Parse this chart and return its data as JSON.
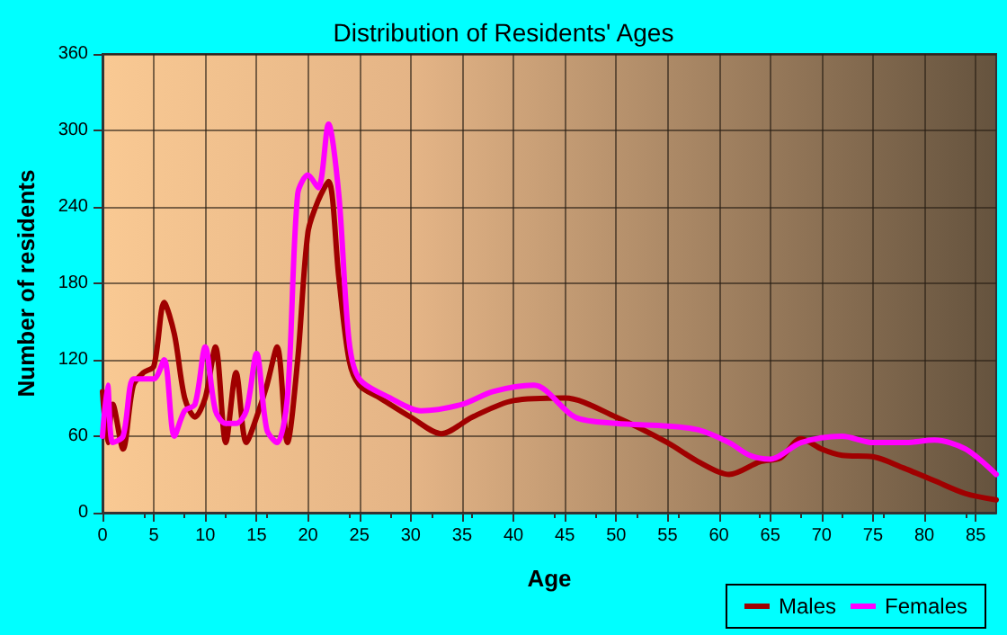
{
  "chart_data": {
    "type": "line",
    "title": "Distribution of Residents' Ages",
    "xlabel": "Age",
    "ylabel": "Number of residents",
    "xlim": [
      0,
      87
    ],
    "xticks": [
      0,
      5,
      10,
      15,
      20,
      25,
      30,
      35,
      40,
      45,
      50,
      55,
      60,
      65,
      70,
      75,
      80,
      85
    ],
    "ylim": [
      0,
      360
    ],
    "yticks": [
      0,
      60,
      120,
      180,
      240,
      300,
      360
    ],
    "grid": true,
    "legend": "bottom right",
    "marker": "none",
    "line_style": "solid",
    "series": [
      {
        "name": "Males",
        "color": "#a00000",
        "x": [
          0,
          0.5,
          1,
          2,
          3,
          4,
          5,
          6,
          7,
          8,
          9,
          10,
          11,
          12,
          13,
          14,
          15,
          16,
          17,
          18,
          19,
          20,
          21,
          22,
          23,
          24,
          25,
          27,
          30,
          33,
          36,
          40,
          45,
          50,
          55,
          58,
          61,
          64,
          66,
          68,
          70,
          72,
          75,
          78,
          81,
          84,
          87
        ],
        "values": [
          95,
          55,
          85,
          50,
          100,
          110,
          115,
          165,
          140,
          90,
          75,
          90,
          130,
          55,
          110,
          55,
          75,
          100,
          130,
          55,
          120,
          220,
          245,
          260,
          185,
          120,
          100,
          90,
          75,
          62,
          75,
          88,
          90,
          75,
          55,
          40,
          30,
          40,
          43,
          58,
          50,
          45,
          44,
          35,
          25,
          15,
          10
        ]
      },
      {
        "name": "Females",
        "color": "#ff00ff",
        "x": [
          0,
          0.5,
          1,
          2,
          3,
          4,
          5,
          6,
          7,
          8,
          9,
          10,
          11,
          12,
          13,
          14,
          15,
          16,
          17,
          18,
          19,
          20,
          21,
          22,
          23,
          24,
          25,
          28,
          31,
          35,
          38,
          42,
          46,
          50,
          55,
          58,
          61,
          63,
          65,
          68,
          72,
          75,
          78,
          81,
          84,
          87
        ],
        "values": [
          60,
          100,
          55,
          60,
          105,
          105,
          105,
          120,
          60,
          80,
          85,
          130,
          80,
          70,
          70,
          80,
          125,
          65,
          55,
          90,
          250,
          265,
          255,
          305,
          250,
          135,
          105,
          90,
          80,
          85,
          95,
          100,
          75,
          70,
          68,
          65,
          55,
          45,
          42,
          55,
          60,
          55,
          55,
          57,
          50,
          30
        ]
      }
    ]
  }
}
